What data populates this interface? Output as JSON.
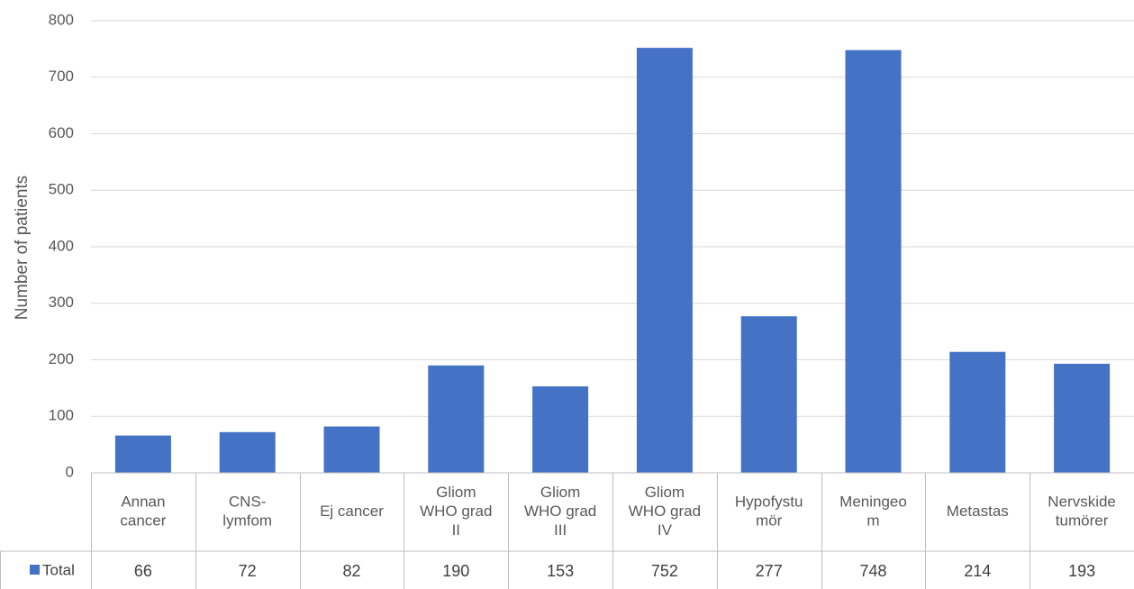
{
  "chart_data": {
    "type": "bar",
    "title": "",
    "xlabel": "",
    "ylabel": "Number of patients",
    "ylim": [
      0,
      800
    ],
    "yticks": [
      0,
      100,
      200,
      300,
      400,
      500,
      600,
      700,
      800
    ],
    "grid": true,
    "categories": [
      [
        "Annan",
        "cancer"
      ],
      [
        "CNS-",
        "lymfom"
      ],
      [
        "Ej cancer"
      ],
      [
        "Gliom",
        "WHO grad",
        "II"
      ],
      [
        "Gliom",
        "WHO grad",
        "III"
      ],
      [
        "Gliom",
        "WHO grad",
        "IV"
      ],
      [
        "Hypofystu",
        "mör"
      ],
      [
        "Meningeo",
        "m"
      ],
      [
        "Metastas"
      ],
      [
        "Nervskide",
        "tumörer"
      ]
    ],
    "series": [
      {
        "name": "Total",
        "color": "#4472C4",
        "values": [
          66,
          72,
          82,
          190,
          153,
          752,
          277,
          748,
          214,
          193
        ]
      }
    ],
    "data_table": true
  }
}
